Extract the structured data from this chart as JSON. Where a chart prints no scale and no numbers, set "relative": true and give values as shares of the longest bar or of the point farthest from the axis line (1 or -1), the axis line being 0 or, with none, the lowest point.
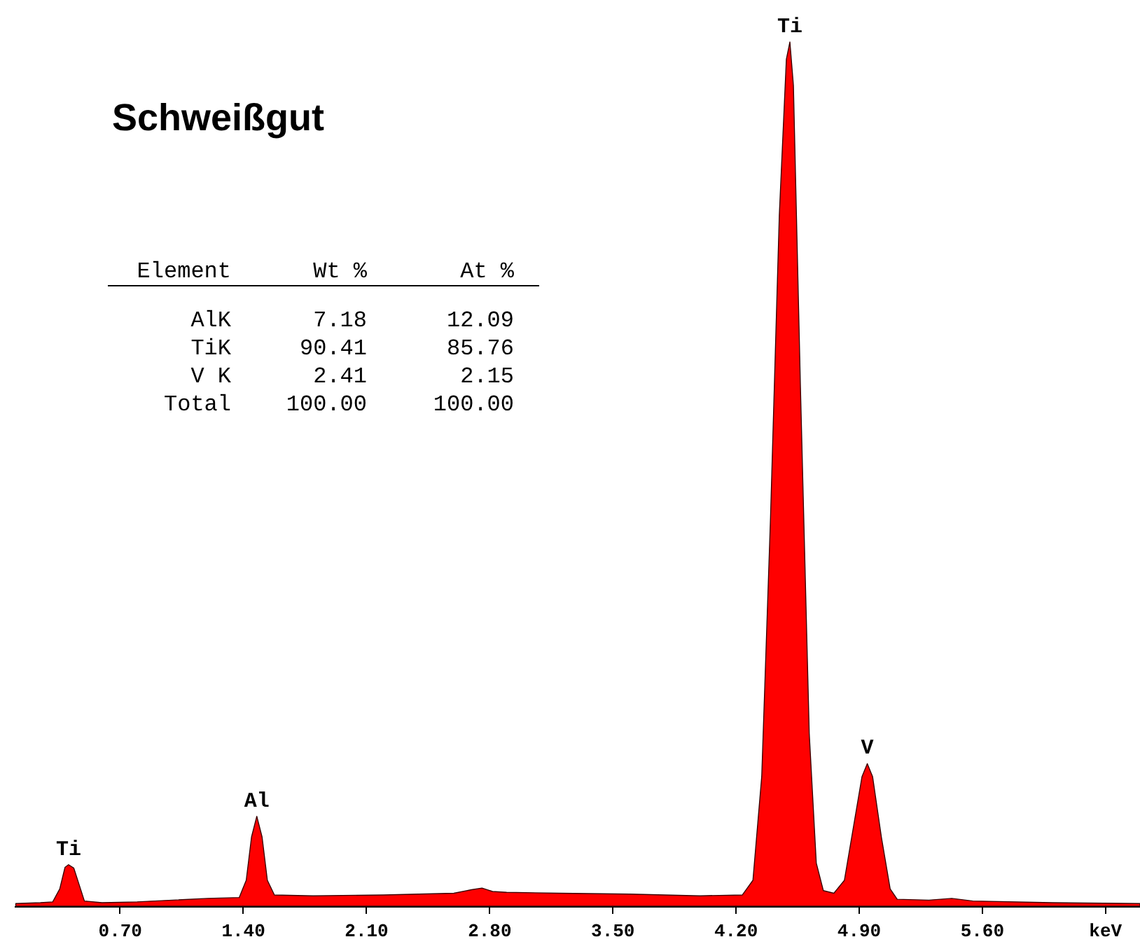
{
  "chart_data": {
    "type": "area",
    "title": "Schweißgut",
    "relative": true,
    "color": "#ff0000",
    "x": [
      0.11,
      0.25,
      0.32,
      0.36,
      0.39,
      0.41,
      0.44,
      0.47,
      0.5,
      0.6,
      0.8,
      1.0,
      1.2,
      1.38,
      1.42,
      1.45,
      1.48,
      1.51,
      1.54,
      1.58,
      1.8,
      2.2,
      2.6,
      2.7,
      2.76,
      2.82,
      2.9,
      3.2,
      3.6,
      4.0,
      4.24,
      4.3,
      4.35,
      4.4,
      4.45,
      4.49,
      4.51,
      4.53,
      4.57,
      4.62,
      4.66,
      4.7,
      4.76,
      4.82,
      4.87,
      4.92,
      4.95,
      4.98,
      5.03,
      5.08,
      5.12,
      5.3,
      5.43,
      5.55,
      6.0,
      6.5
    ],
    "values": [
      0.003,
      0.004,
      0.005,
      0.02,
      0.045,
      0.048,
      0.044,
      0.025,
      0.006,
      0.004,
      0.005,
      0.007,
      0.009,
      0.01,
      0.03,
      0.08,
      0.104,
      0.08,
      0.03,
      0.013,
      0.012,
      0.013,
      0.015,
      0.019,
      0.021,
      0.017,
      0.016,
      0.015,
      0.014,
      0.012,
      0.013,
      0.03,
      0.15,
      0.45,
      0.8,
      0.98,
      1,
      0.95,
      0.6,
      0.2,
      0.05,
      0.018,
      0.015,
      0.03,
      0.09,
      0.15,
      0.165,
      0.15,
      0.08,
      0.02,
      0.008,
      0.007,
      0.009,
      0.006,
      0.004,
      0.003
    ],
    "xlim": [
      0.1,
      6.5
    ],
    "xticks": [
      {
        "value": 0.7,
        "label": "0.70"
      },
      {
        "value": 1.4,
        "label": "1.40"
      },
      {
        "value": 2.1,
        "label": "2.10"
      },
      {
        "value": 2.8,
        "label": "2.80"
      },
      {
        "value": 3.5,
        "label": "3.50"
      },
      {
        "value": 4.2,
        "label": "4.20"
      },
      {
        "value": 4.9,
        "label": "4.90"
      },
      {
        "value": 5.6,
        "label": "5.60"
      },
      {
        "value": 6.3,
        "label": "keV"
      }
    ],
    "grid": false,
    "annotations": [
      {
        "text": "Ti",
        "x": 0.41,
        "y": 0.048
      },
      {
        "text": "Al",
        "x": 1.48,
        "y": 0.104
      },
      {
        "text": "Ti",
        "x": 4.51,
        "y": 1
      },
      {
        "text": "V",
        "x": 4.95,
        "y": 0.165
      },
      "Element",
      "Wt %",
      "At %",
      "AlK",
      "7.18",
      "12.09",
      "TiK",
      "90.41",
      "85.76",
      "V K",
      "2.41",
      "2.15",
      "Total",
      "100.00",
      "100.00"
    ]
  }
}
